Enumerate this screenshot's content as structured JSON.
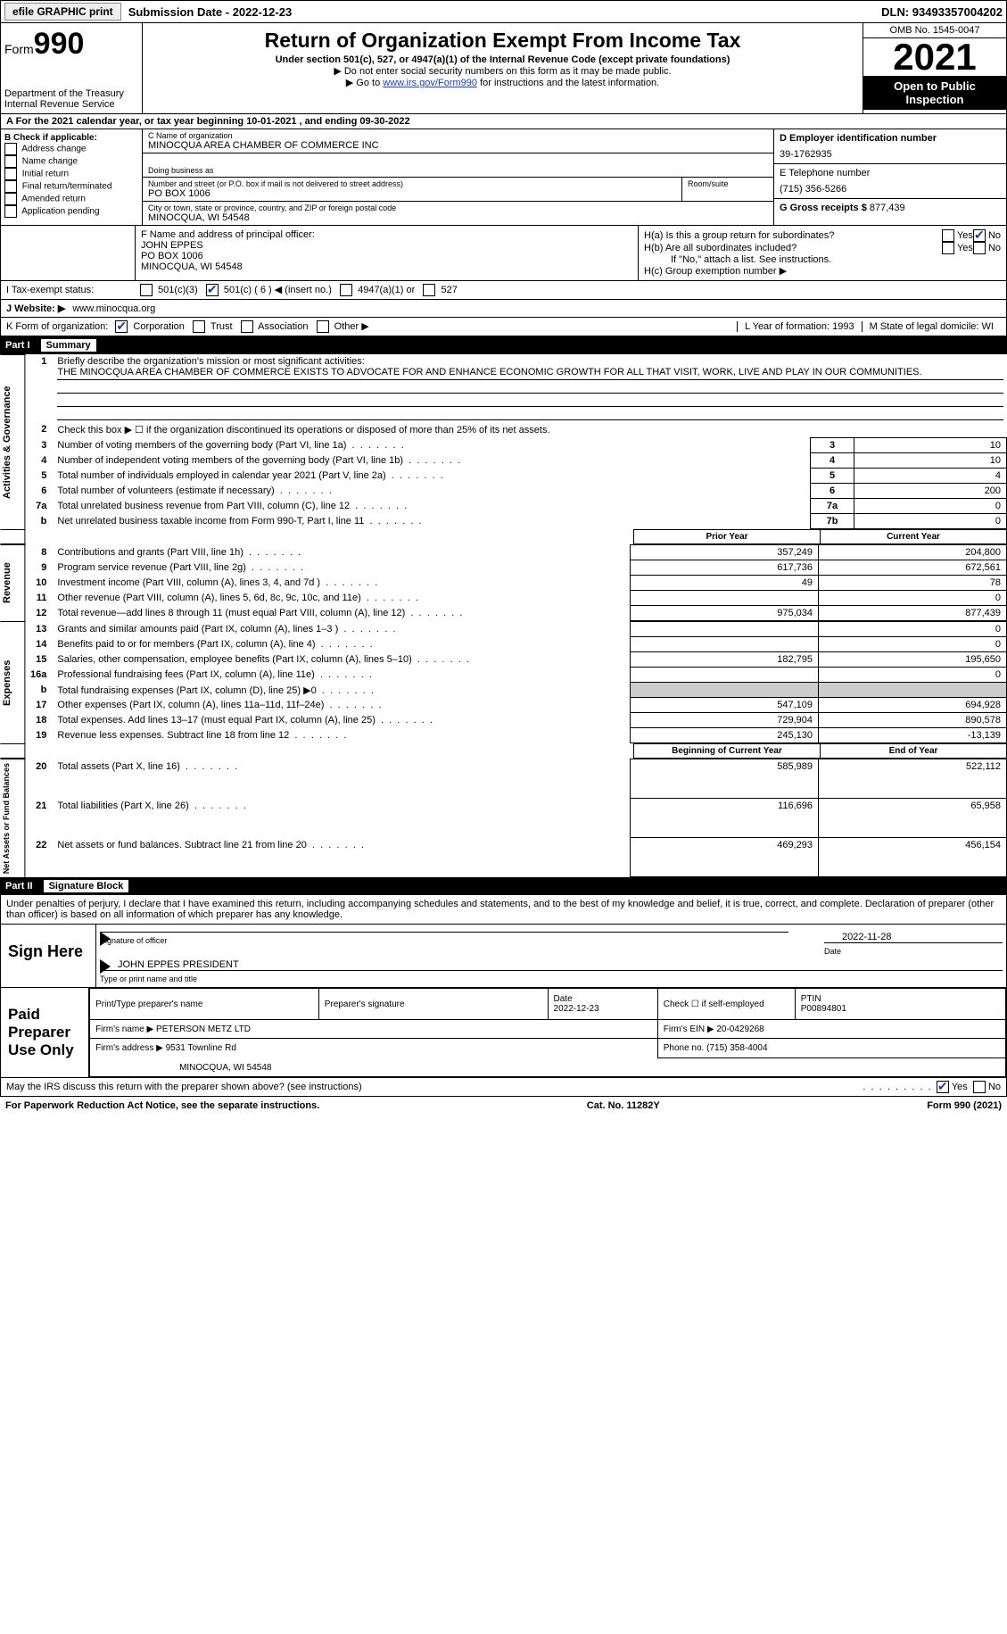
{
  "top": {
    "efile": "efile GRAPHIC print",
    "submission": "Submission Date - 2022-12-23",
    "dln": "DLN: 93493357004202"
  },
  "header": {
    "form": "Form",
    "num": "990",
    "dept": "Department of the Treasury Internal Revenue Service",
    "title": "Return of Organization Exempt From Income Tax",
    "subtitle": "Under section 501(c), 527, or 4947(a)(1) of the Internal Revenue Code (except private foundations)",
    "note1": "▶ Do not enter social security numbers on this form as it may be made public.",
    "note2_pre": "▶ Go to ",
    "note2_link": "www.irs.gov/Form990",
    "note2_post": " for instructions and the latest information.",
    "omb": "OMB No. 1545-0047",
    "year": "2021",
    "open": "Open to Public Inspection"
  },
  "a": {
    "text": "A For the 2021 calendar year, or tax year beginning 10-01-2021   , and ending 09-30-2022"
  },
  "b": {
    "label": "B Check if applicable:",
    "items": [
      "Address change",
      "Name change",
      "Initial return",
      "Final return/terminated",
      "Amended return",
      "Application pending"
    ]
  },
  "c": {
    "name_label": "C Name of organization",
    "name": "MINOCQUA AREA CHAMBER OF COMMERCE INC",
    "dba_label": "Doing business as",
    "addr_label": "Number and street (or P.O. box if mail is not delivered to street address)",
    "addr": "PO BOX 1006",
    "room": "Room/suite",
    "city_label": "City or town, state or province, country, and ZIP or foreign postal code",
    "city": "MINOCQUA, WI  54548"
  },
  "d": {
    "ein_label": "D Employer identification number",
    "ein": "39-1762935",
    "tel_label": "E Telephone number",
    "tel": "(715) 356-5266",
    "gross_label": "G Gross receipts $",
    "gross": "877,439"
  },
  "f": {
    "label": "F  Name and address of principal officer:",
    "name": "JOHN EPPES",
    "addr1": "PO BOX 1006",
    "addr2": "MINOCQUA, WI  54548"
  },
  "h": {
    "a": "H(a)  Is this a group return for subordinates?",
    "b": "H(b)  Are all subordinates included?",
    "b_note": "If \"No,\" attach a list. See instructions.",
    "c": "H(c)  Group exemption number ▶",
    "yes": "Yes",
    "no": "No"
  },
  "i": {
    "label": "I   Tax-exempt status:",
    "opts": [
      "501(c)(3)",
      "501(c) ( 6 ) ◀ (insert no.)",
      "4947(a)(1) or",
      "527"
    ]
  },
  "j": {
    "label": "J  Website: ▶",
    "val": "www.minocqua.org"
  },
  "k": {
    "label": "K Form of organization:",
    "opts": [
      "Corporation",
      "Trust",
      "Association",
      "Other ▶"
    ]
  },
  "l": {
    "label": "L Year of formation:",
    "val": "1993"
  },
  "m": {
    "label": "M State of legal domicile:",
    "val": "WI"
  },
  "part1": {
    "title": "Part I",
    "name": "Summary",
    "line1_label": "Briefly describe the organization's mission or most significant activities:",
    "line1_text": "THE MINOCQUA AREA CHAMBER OF COMMERCE EXISTS TO ADVOCATE FOR AND ENHANCE ECONOMIC GROWTH FOR ALL THAT VISIT, WORK, LIVE AND PLAY IN OUR COMMUNITIES.",
    "line2": "Check this box ▶ ☐ if the organization discontinued its operations or disposed of more than 25% of its net assets.",
    "rows_gov": [
      {
        "n": "3",
        "t": "Number of voting members of the governing body (Part VI, line 1a)",
        "box": "3",
        "v": "10"
      },
      {
        "n": "4",
        "t": "Number of independent voting members of the governing body (Part VI, line 1b)",
        "box": "4",
        "v": "10"
      },
      {
        "n": "5",
        "t": "Total number of individuals employed in calendar year 2021 (Part V, line 2a)",
        "box": "5",
        "v": "4"
      },
      {
        "n": "6",
        "t": "Total number of volunteers (estimate if necessary)",
        "box": "6",
        "v": "200"
      },
      {
        "n": "7a",
        "t": "Total unrelated business revenue from Part VIII, column (C), line 12",
        "box": "7a",
        "v": "0"
      },
      {
        "n": "b",
        "t": "Net unrelated business taxable income from Form 990-T, Part I, line 11",
        "box": "7b",
        "v": "0"
      }
    ],
    "prior": "Prior Year",
    "current": "Current Year",
    "rows_rev": [
      {
        "n": "8",
        "t": "Contributions and grants (Part VIII, line 1h)",
        "p": "357,249",
        "c": "204,800"
      },
      {
        "n": "9",
        "t": "Program service revenue (Part VIII, line 2g)",
        "p": "617,736",
        "c": "672,561"
      },
      {
        "n": "10",
        "t": "Investment income (Part VIII, column (A), lines 3, 4, and 7d )",
        "p": "49",
        "c": "78"
      },
      {
        "n": "11",
        "t": "Other revenue (Part VIII, column (A), lines 5, 6d, 8c, 9c, 10c, and 11e)",
        "p": "",
        "c": "0"
      },
      {
        "n": "12",
        "t": "Total revenue—add lines 8 through 11 (must equal Part VIII, column (A), line 12)",
        "p": "975,034",
        "c": "877,439"
      }
    ],
    "rows_exp": [
      {
        "n": "13",
        "t": "Grants and similar amounts paid (Part IX, column (A), lines 1–3 )",
        "p": "",
        "c": "0"
      },
      {
        "n": "14",
        "t": "Benefits paid to or for members (Part IX, column (A), line 4)",
        "p": "",
        "c": "0"
      },
      {
        "n": "15",
        "t": "Salaries, other compensation, employee benefits (Part IX, column (A), lines 5–10)",
        "p": "182,795",
        "c": "195,650"
      },
      {
        "n": "16a",
        "t": "Professional fundraising fees (Part IX, column (A), line 11e)",
        "p": "",
        "c": "0"
      },
      {
        "n": "b",
        "t": "Total fundraising expenses (Part IX, column (D), line 25) ▶0",
        "p": "grey",
        "c": "grey"
      },
      {
        "n": "17",
        "t": "Other expenses (Part IX, column (A), lines 11a–11d, 11f–24e)",
        "p": "547,109",
        "c": "694,928"
      },
      {
        "n": "18",
        "t": "Total expenses. Add lines 13–17 (must equal Part IX, column (A), line 25)",
        "p": "729,904",
        "c": "890,578"
      },
      {
        "n": "19",
        "t": "Revenue less expenses. Subtract line 18 from line 12",
        "p": "245,130",
        "c": "-13,139"
      }
    ],
    "begin": "Beginning of Current Year",
    "end": "End of Year",
    "rows_net": [
      {
        "n": "20",
        "t": "Total assets (Part X, line 16)",
        "p": "585,989",
        "c": "522,112"
      },
      {
        "n": "21",
        "t": "Total liabilities (Part X, line 26)",
        "p": "116,696",
        "c": "65,958"
      },
      {
        "n": "22",
        "t": "Net assets or fund balances. Subtract line 21 from line 20",
        "p": "469,293",
        "c": "456,154"
      }
    ],
    "vert_gov": "Activities & Governance",
    "vert_rev": "Revenue",
    "vert_exp": "Expenses",
    "vert_net": "Net Assets or Fund Balances"
  },
  "part2": {
    "title": "Part II",
    "name": "Signature Block",
    "penalty": "Under penalties of perjury, I declare that I have examined this return, including accompanying schedules and statements, and to the best of my knowledge and belief, it is true, correct, and complete. Declaration of preparer (other than officer) is based on all information of which preparer has any knowledge.",
    "sign_here": "Sign Here",
    "sig_officer": "Signature of officer",
    "sig_date": "2022-11-28",
    "date_label": "Date",
    "officer_name": "JOHN EPPES  PRESIDENT",
    "type_name": "Type or print name and title",
    "paid": "Paid Preparer Use Only",
    "prep_name_label": "Print/Type preparer's name",
    "prep_sig_label": "Preparer's signature",
    "prep_date_label": "Date",
    "prep_date": "2022-12-23",
    "check_self": "Check ☐ if self-employed",
    "ptin_label": "PTIN",
    "ptin": "P00894801",
    "firm_name_label": "Firm's name    ▶",
    "firm_name": "PETERSON METZ LTD",
    "firm_ein_label": "Firm's EIN ▶",
    "firm_ein": "20-0429268",
    "firm_addr_label": "Firm's address ▶",
    "firm_addr1": "9531 Townline Rd",
    "firm_addr2": "MINOCQUA, WI  54548",
    "phone_label": "Phone no.",
    "phone": "(715) 358-4004",
    "may_irs": "May the IRS discuss this return with the preparer shown above? (see instructions)"
  },
  "footer": {
    "left": "For Paperwork Reduction Act Notice, see the separate instructions.",
    "mid": "Cat. No. 11282Y",
    "right": "Form 990 (2021)"
  }
}
